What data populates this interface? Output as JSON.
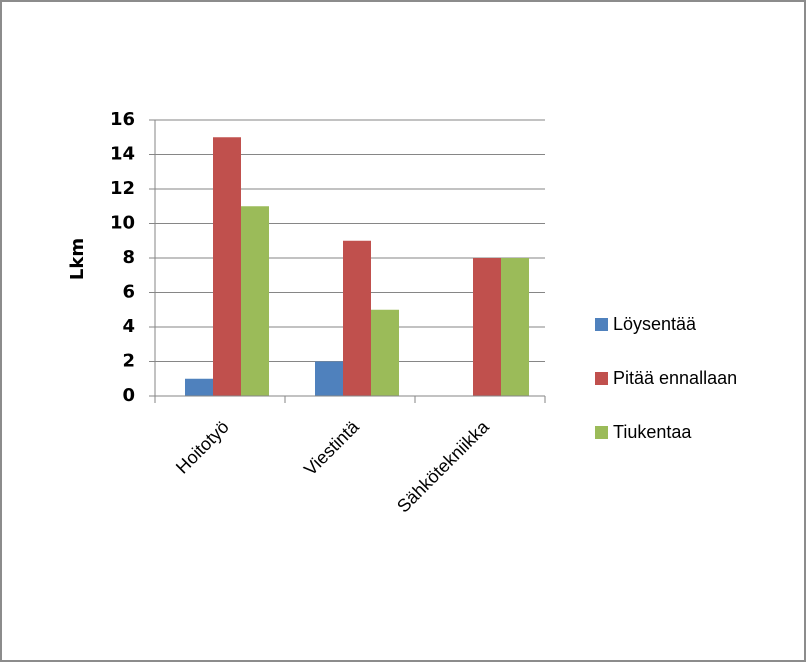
{
  "chart_data": {
    "type": "bar",
    "ylabel": "Lkm",
    "xlabel": "",
    "ylim": [
      0,
      16
    ],
    "yticks": [
      "0",
      "2",
      "4",
      "6",
      "8",
      "10",
      "12",
      "14",
      "16"
    ],
    "grid": true,
    "legend_position": "right",
    "categories": [
      "Hoitotyö",
      "Viestintä",
      "Sähkötekniikka"
    ],
    "series": [
      {
        "name": "Löysentää",
        "color": "#4f81bd",
        "values": [
          1,
          2,
          0
        ]
      },
      {
        "name": "Pitää ennallaan",
        "color": "#c0504d",
        "values": [
          15,
          9,
          8
        ]
      },
      {
        "name": "Tiukentaa",
        "color": "#9bbb59",
        "values": [
          11,
          5,
          8
        ]
      }
    ]
  }
}
